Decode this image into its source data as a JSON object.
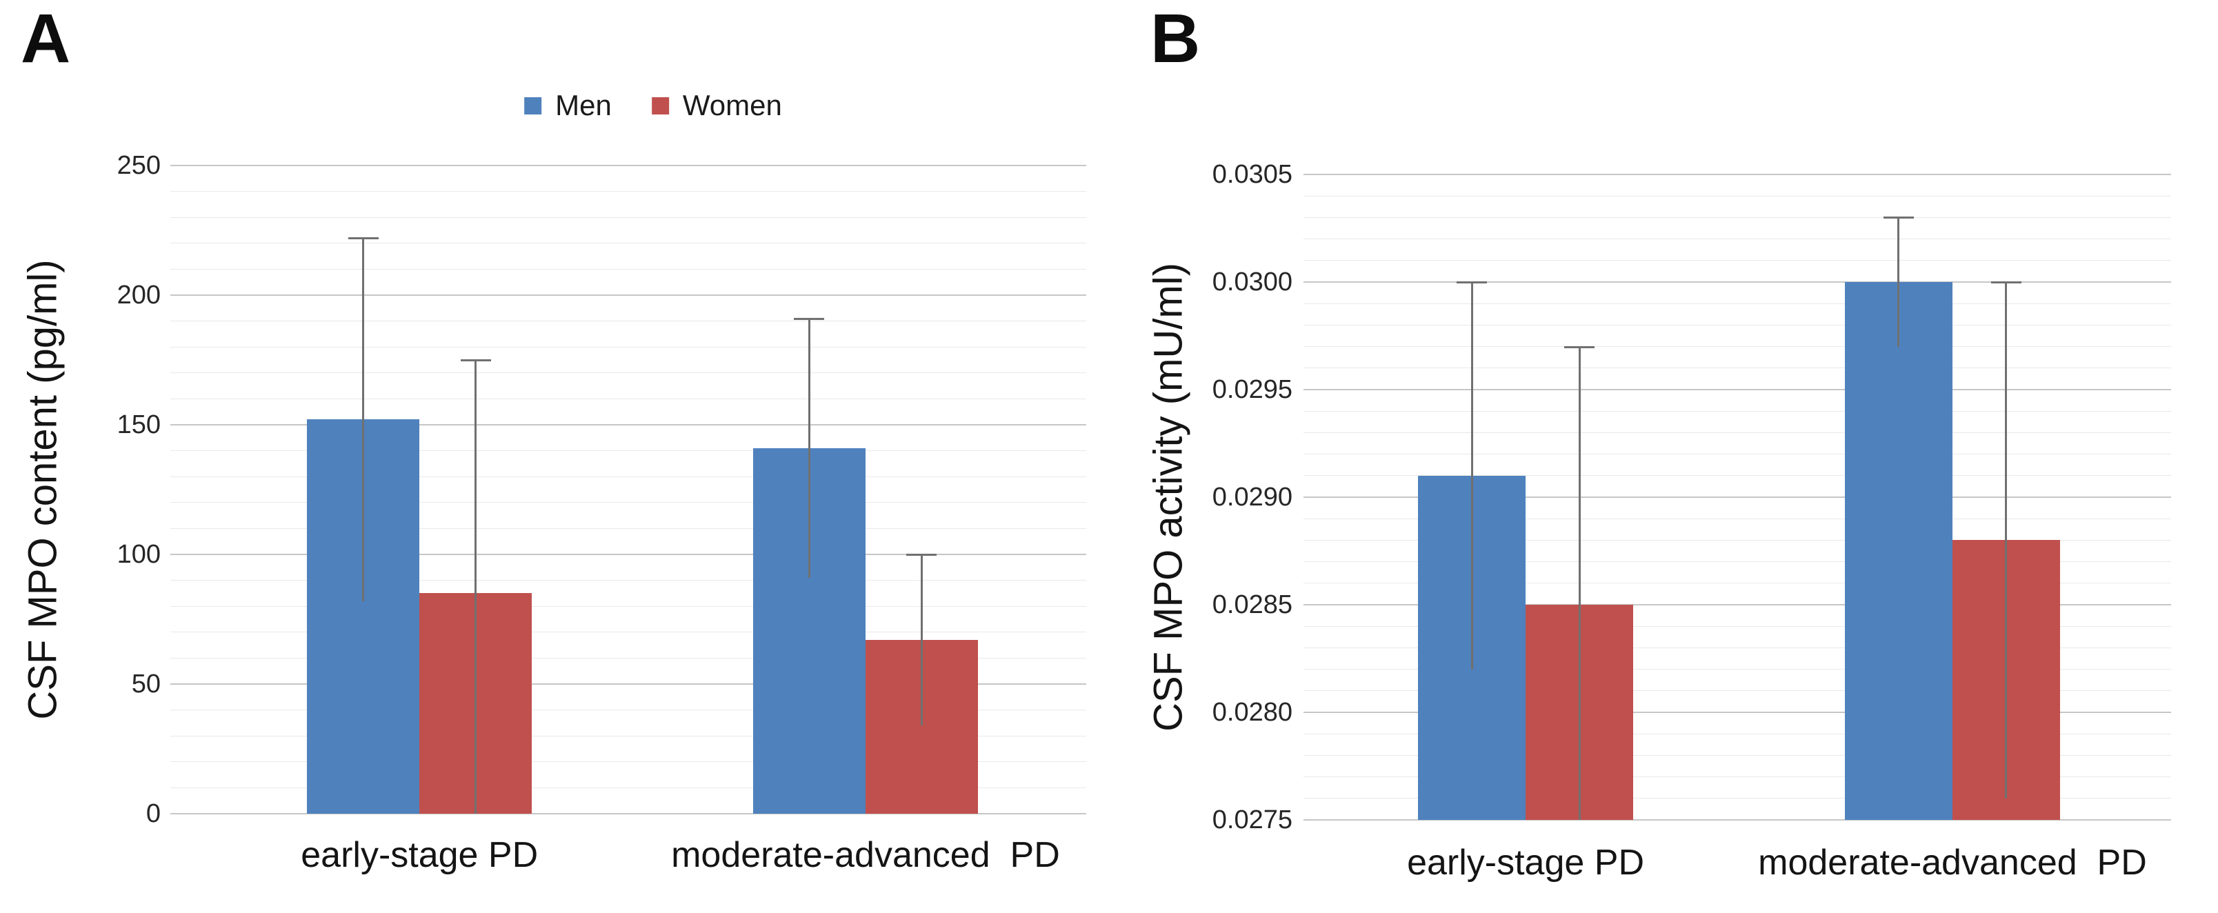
{
  "figure": {
    "background": "#ffffff",
    "grid_color_minor": "#e9e9e9",
    "grid_color_major": "#c6c6c6",
    "error_bar_color": "#707070"
  },
  "legend": {
    "items": [
      {
        "label": "Men",
        "color": "#4F81BD",
        "swatch": "men-color-swatch"
      },
      {
        "label": "Women",
        "color": "#C0504D",
        "swatch": "women-color-swatch"
      }
    ]
  },
  "chart_data": [
    {
      "type": "bar",
      "panel_letter": "A",
      "title": "",
      "xlabel": "",
      "ylabel": "CSF MPO content (pg/ml)",
      "categories": [
        "early-stage PD",
        "moderate-advanced  PD"
      ],
      "series": [
        {
          "name": "Men",
          "color": "#4F81BD",
          "values": [
            152,
            141
          ],
          "error_plus": [
            70,
            50
          ]
        },
        {
          "name": "Women",
          "color": "#C0504D",
          "values": [
            85,
            67
          ],
          "error_plus": [
            90,
            33
          ]
        }
      ],
      "error_symmetric": true,
      "ylim": [
        0,
        250
      ],
      "ytick_step": 50,
      "minor_step": 10,
      "tick_decimals": 0,
      "grid": true,
      "legend_position": "top"
    },
    {
      "type": "bar",
      "panel_letter": "B",
      "title": "",
      "xlabel": "",
      "ylabel": "CSF MPO activity (mU/ml)",
      "categories": [
        "early-stage PD",
        "moderate-advanced  PD"
      ],
      "series": [
        {
          "name": "Men",
          "color": "#4F81BD",
          "values": [
            0.0291,
            0.03
          ],
          "error_plus": [
            0.0009,
            0.0003
          ]
        },
        {
          "name": "Women",
          "color": "#C0504D",
          "values": [
            0.0285,
            0.0288
          ],
          "error_plus": [
            0.0012,
            0.0012
          ]
        }
      ],
      "error_symmetric": true,
      "ylim": [
        0.0275,
        0.0305
      ],
      "ytick_step": 0.0005,
      "minor_step": 0.0001,
      "tick_decimals": 4,
      "grid": true,
      "legend_position": "none"
    }
  ]
}
